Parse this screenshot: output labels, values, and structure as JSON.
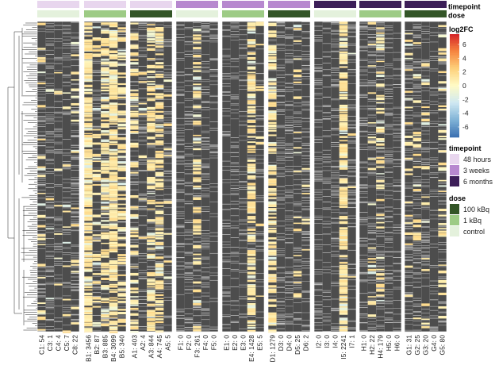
{
  "chart_data": {
    "type": "heatmap",
    "title": "",
    "annotation_labels": {
      "timepoint": "timepoint",
      "dose": "dose"
    },
    "colorbar": {
      "title": "log2FC",
      "ticks": [
        6,
        4,
        2,
        0,
        -2,
        -4,
        -6
      ],
      "range": [
        -7.5,
        7.5
      ],
      "colors": [
        "#3a6fb0",
        "#7fb2d6",
        "#cfe8f2",
        "#fffbc6",
        "#fdd07a",
        "#f6843f",
        "#d42227"
      ]
    },
    "na_color": "#4d4d4d",
    "legends": {
      "timepoint": {
        "title": "timepoint",
        "items": [
          {
            "label": "48 hours",
            "color": "#e8d6ee"
          },
          {
            "label": "3 weeks",
            "color": "#b788cf"
          },
          {
            "label": "6 months",
            "color": "#3c1e58"
          }
        ]
      },
      "dose": {
        "title": "dose",
        "items": [
          {
            "label": "100 kBq",
            "color": "#335527"
          },
          {
            "label": "1 kBq",
            "color": "#9dcb85"
          },
          {
            "label": "control",
            "color": "#e4f1dc"
          }
        ]
      }
    },
    "groups": [
      {
        "timepoint": "48 hours",
        "dose_key": "control",
        "samples": [
          "C1: 54",
          "C3: 1",
          "C4: 4",
          "C5: 7",
          "C8: 22"
        ]
      },
      {
        "timepoint": "48 hours",
        "dose_key": "1 kBq",
        "samples": [
          "B1: 3456",
          "B2: 87",
          "B3: 885",
          "B4: 3099",
          "B5: 340"
        ]
      },
      {
        "timepoint": "48 hours",
        "dose_key": "100 kBq",
        "samples": [
          "A1: 403",
          "A2: 4",
          "A3: 844",
          "A4: 745",
          "A5: 5"
        ]
      },
      {
        "timepoint": "3 weeks",
        "dose_key": "control",
        "samples": [
          "F1: 0",
          "F2: 0",
          "F3: 261",
          "F4: 0",
          "F5: 0"
        ]
      },
      {
        "timepoint": "3 weeks",
        "dose_key": "1 kBq",
        "samples": [
          "E1: 0",
          "E2: 0",
          "E3: 0",
          "E4: 1428",
          "E5: 5"
        ]
      },
      {
        "timepoint": "3 weeks",
        "dose_key": "100 kBq",
        "samples": [
          "D1: 1279",
          "D3: 0",
          "D4: 0",
          "D5: 25",
          "D6: 2"
        ]
      },
      {
        "timepoint": "6 months",
        "dose_key": "control",
        "samples": [
          "I2: 0",
          "I3: 0",
          "I4: 0",
          "I5: 2241",
          "I7: 1"
        ]
      },
      {
        "timepoint": "6 months",
        "dose_key": "1 kBq",
        "samples": [
          "H1: 0",
          "H2: 22",
          "H4: 179",
          "H5: 0",
          "H6: 0"
        ]
      },
      {
        "timepoint": "6 months",
        "dose_key": "100 kBq",
        "samples": [
          "G1: 31",
          "G2: 25",
          "G3: 20",
          "G4: 0",
          "G5: 80"
        ]
      }
    ],
    "rows_approx": 400,
    "row_dendrogram": true
  }
}
